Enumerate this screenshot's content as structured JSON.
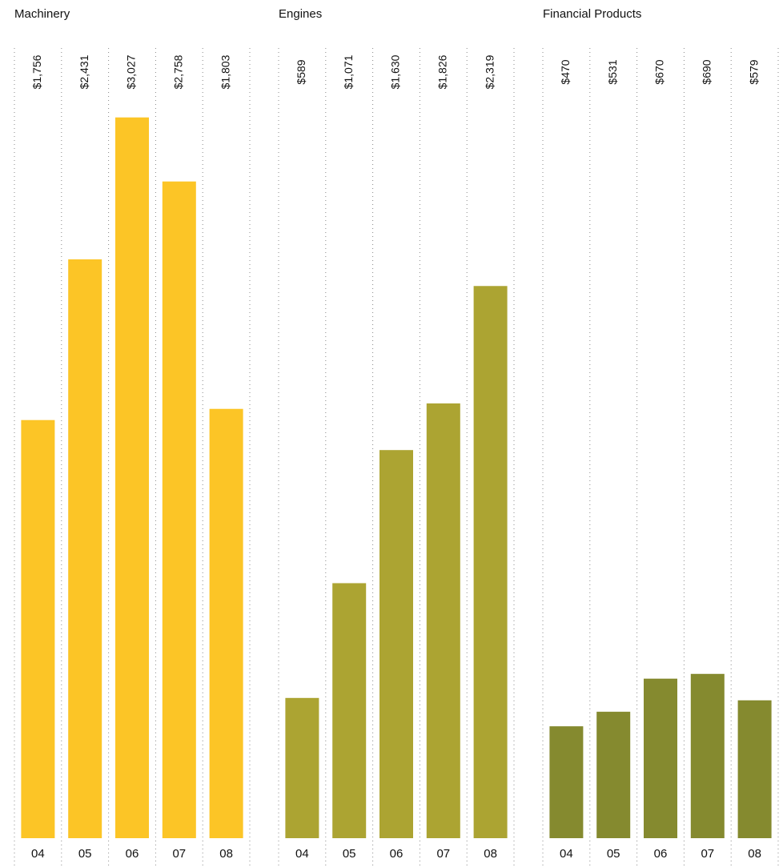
{
  "chart_data": [
    {
      "type": "bar",
      "title": "Machinery",
      "categories": [
        "04",
        "05",
        "06",
        "07",
        "08"
      ],
      "values": [
        1756,
        2431,
        3027,
        2758,
        1803
      ],
      "value_labels": [
        "$1,756",
        "$2,431",
        "$3,027",
        "$2,758",
        "$1,803"
      ],
      "color": "#fcc526",
      "ylim": [
        0,
        3500
      ]
    },
    {
      "type": "bar",
      "title": "Engines",
      "categories": [
        "04",
        "05",
        "06",
        "07",
        "08"
      ],
      "values": [
        589,
        1071,
        1630,
        1826,
        2319
      ],
      "value_labels": [
        "$589",
        "$1,071",
        "$1,630",
        "$1,826",
        "$2,319"
      ],
      "color": "#aca432",
      "ylim": [
        0,
        3500
      ]
    },
    {
      "type": "bar",
      "title": "Financial Products",
      "categories": [
        "04",
        "05",
        "06",
        "07",
        "08"
      ],
      "values": [
        470,
        531,
        670,
        690,
        579
      ],
      "value_labels": [
        "$470",
        "$531",
        "$670",
        "$690",
        "$579"
      ],
      "color": "#858a2f",
      "ylim": [
        0,
        3500
      ]
    }
  ]
}
